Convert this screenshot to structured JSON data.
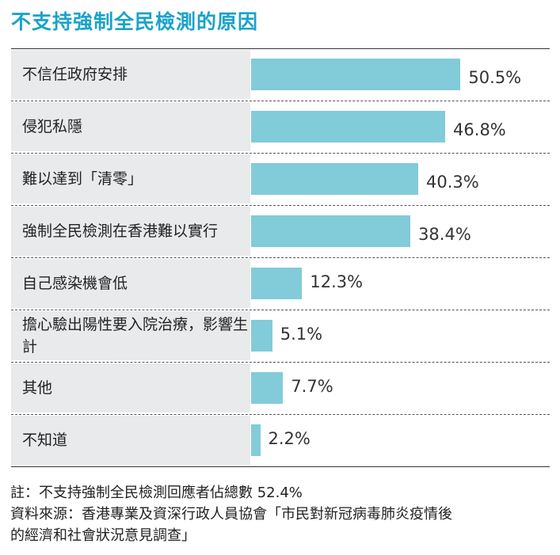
{
  "title": "不支持強制全民檢測的原因",
  "chart_data": {
    "type": "bar",
    "orientation": "horizontal",
    "title": "不支持強制全民檢測的原因",
    "categories": [
      "不信任政府安排",
      "侵犯私隱",
      "難以達到「清零」",
      "強制全民檢測在香港難以實行",
      "自己感染機會低",
      "擔心驗出陽性要入院治療，影響生計",
      "其他",
      "不知道"
    ],
    "values": [
      50.5,
      46.8,
      40.3,
      38.4,
      12.3,
      5.1,
      7.7,
      2.2
    ],
    "value_labels": [
      "50.5%",
      "46.8%",
      "40.3%",
      "38.4%",
      "12.3%",
      "5.1%",
      "7.7%",
      "2.2%"
    ],
    "unit": "%",
    "xlim": [
      0,
      72
    ],
    "bar_color": "#82cbd9"
  },
  "notes": {
    "line1": "註：不支持強制全民檢測回應者佔總數 52.4%",
    "line2": "資料來源：香港專業及資深行政人員協會「市民對新冠病毒肺炎疫情後",
    "line3": "的經濟和社會狀況意見調查」"
  }
}
